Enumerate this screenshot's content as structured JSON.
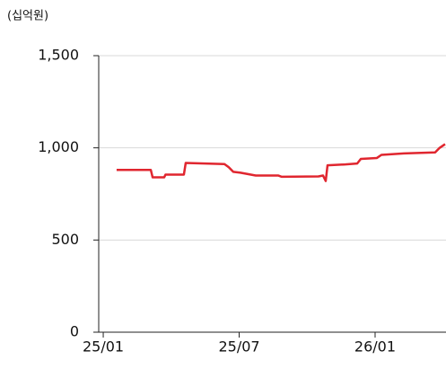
{
  "chart_data": {
    "type": "line",
    "unit_label": "(십억원)",
    "x": [
      0.59,
      2.1,
      2.18,
      2.69,
      2.75,
      3.56,
      3.64,
      5.35,
      5.54,
      5.74,
      6.06,
      6.73,
      7.72,
      7.88,
      9.5,
      9.7,
      9.82,
      9.9,
      10.69,
      11.21,
      11.37,
      12.08,
      12.28,
      13.27,
      14.65,
      14.85,
      15.09
    ],
    "series": [
      {
        "name": "series",
        "color": "#e0262f",
        "values": [
          880,
          880,
          840,
          840,
          855,
          855,
          918,
          912,
          895,
          870,
          865,
          850,
          850,
          843,
          845,
          850,
          820,
          905,
          910,
          915,
          940,
          945,
          962,
          970,
          975,
          1000,
          1020
        ]
      }
    ],
    "xlim": [
      -0.2,
      15.13
    ],
    "xticks": [
      {
        "value": 0,
        "label": "25/01"
      },
      {
        "value": 6,
        "label": "25/07"
      },
      {
        "value": 12,
        "label": "26/01"
      }
    ],
    "ylim": [
      0,
      1500
    ],
    "yticks": [
      0,
      {
        "value": 500,
        "label": "500"
      },
      {
        "value": 1000,
        "label": "1,000"
      },
      {
        "value": 1500,
        "label": "1,500"
      }
    ],
    "grid": true
  }
}
